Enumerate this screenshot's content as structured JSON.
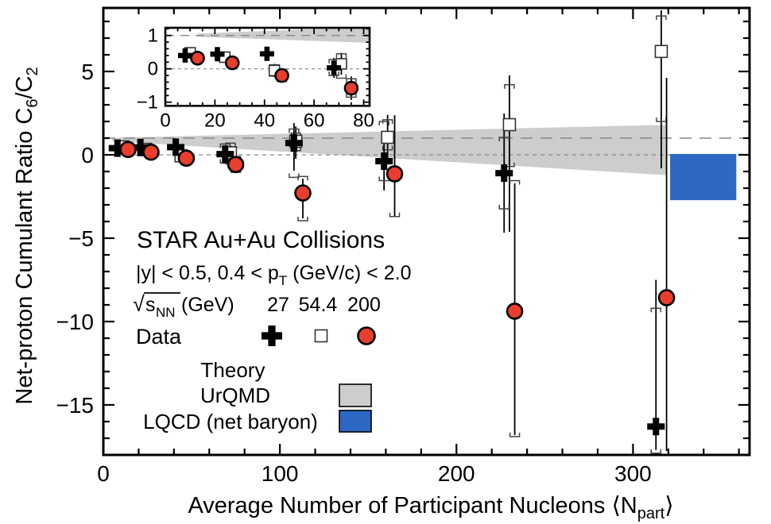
{
  "chart_data": {
    "type": "scatter",
    "title": "STAR Au+Au Collisions",
    "subtitle_parts": [
      "|y| < 0.5, 0.4 < p",
      "T",
      " (GeV/c) < 2.0"
    ],
    "energy_row": {
      "radical": "√",
      "s_symbol": "s",
      "s_subscript": "NN",
      "unit": " (GeV)",
      "energies": [
        "27",
        "54.4",
        "200"
      ]
    },
    "data_label": "Data",
    "theory_label": "Theory",
    "urqmd_label": "UrQMD",
    "lqcd_label": "LQCD (net baryon)",
    "xlabel_parts": [
      "Average Number of Participant Nucleons ⟨N",
      "part",
      "⟩"
    ],
    "ylabel_parts": [
      "Net-proton Cumulant Ratio C",
      "6",
      "/C",
      "2"
    ],
    "xlim": [
      0,
      366
    ],
    "ylim": [
      -18,
      8.81
    ],
    "xticks": {
      "major": [
        0,
        100,
        200,
        300
      ],
      "labels": [
        "0",
        "100",
        "200",
        "300"
      ],
      "minor_step": 20
    },
    "yticks": {
      "major": [
        5,
        0,
        -5,
        -10,
        -15
      ],
      "labels": [
        "5",
        "0",
        "−5",
        "−10",
        "−15"
      ],
      "minor_step": 1
    },
    "dashed_lines": [
      1,
      0
    ],
    "urqmd_band": [
      [
        5,
        1.02
      ],
      [
        319,
        1.8
      ],
      [
        319,
        -1.22
      ],
      [
        5,
        0.82
      ]
    ],
    "lqcd_box": {
      "x0": 321,
      "x1": 358.5,
      "y0": -2.72,
      "y1": 0.05
    },
    "colors": {
      "cross": "#000000",
      "circle_fill": "#e93d2d",
      "square_stroke": "#333333",
      "band": "#cdcdcd",
      "lqcd_blue": "#2e68c5",
      "dash": "#888888",
      "bracket": "#444444"
    },
    "series": [
      {
        "name": "54.4",
        "marker": "square",
        "points": [
          [
            11,
            0.48,
            0.33,
            0.63,
            null,
            null
          ],
          [
            24,
            0.33,
            0.13,
            0.53,
            null,
            null
          ],
          [
            44,
            -0.06,
            -0.31,
            0.19,
            null,
            null
          ],
          [
            72,
            0.12,
            -0.33,
            0.57,
            -0.55,
            0.7
          ],
          [
            109,
            0.81,
            -0.24,
            1.7,
            0.25,
            1.3
          ],
          [
            161,
            1.05,
            -0.5,
            2.4,
            0.3,
            2.1
          ],
          [
            230,
            1.81,
            -4.62,
            4.76,
            -0.7,
            4.2
          ],
          [
            316,
            6.2,
            -0.81,
            8.67,
            2.0,
            8.33
          ]
        ]
      },
      {
        "name": "27",
        "marker": "cross",
        "points": [
          [
            8,
            0.4,
            0.28,
            0.52,
            null,
            null
          ],
          [
            21,
            0.44,
            0.32,
            0.56,
            null,
            null
          ],
          [
            41,
            0.46,
            0.31,
            0.61,
            null,
            null
          ],
          [
            69,
            0.04,
            -0.36,
            0.44,
            -0.5,
            0.65
          ],
          [
            108,
            0.71,
            -0.95,
            1.9,
            -1.35,
            1.55
          ],
          [
            159,
            -0.38,
            -2.14,
            0.71,
            -1.55,
            2.0
          ],
          [
            227,
            -1.1,
            -4.67,
            2.48,
            -3.24,
            1.05
          ],
          [
            313,
            -16.3,
            -17.7,
            -7.5,
            -17.9,
            -9.2
          ]
        ]
      },
      {
        "name": "200",
        "marker": "circle",
        "points": [
          [
            14,
            0.32,
            0.22,
            0.42,
            null,
            null
          ],
          [
            27,
            0.16,
            0.06,
            0.26,
            null,
            null
          ],
          [
            47,
            -0.2,
            -0.45,
            0.05,
            null,
            null
          ],
          [
            75,
            -0.58,
            -0.95,
            -0.21,
            -1.05,
            -0.1
          ],
          [
            113,
            -2.29,
            -3.81,
            -1.43,
            -3.95,
            -1.3
          ],
          [
            165,
            -1.14,
            -3.71,
            2.38,
            -3.7,
            -0.85
          ],
          [
            233,
            -9.38,
            -16.81,
            -1.71,
            -16.9,
            -1.55
          ],
          [
            319,
            -8.57,
            -17.76,
            4.62,
            null,
            null
          ]
        ]
      }
    ],
    "inset": {
      "xlim": [
        0,
        82.4
      ],
      "ylim": [
        -1.11,
        1.231
      ],
      "xticks": {
        "major": [
          0,
          20,
          40,
          60,
          80
        ],
        "labels": [
          "0",
          "20",
          "40",
          "60",
          "80"
        ],
        "minor_step": 5
      },
      "yticks": {
        "major": [
          1,
          0,
          -1
        ],
        "labels": [
          "1",
          "0",
          "−1"
        ],
        "minor_step": 0.2
      },
      "dashed_lines": [
        1,
        0
      ],
      "band": [
        [
          13,
          1.06
        ],
        [
          82.4,
          1.25
        ],
        [
          82.4,
          0.78
        ],
        [
          13,
          0.96
        ]
      ],
      "series": [
        {
          "name": "54.4",
          "marker": "square",
          "points": [
            [
              10,
              0.48,
              0.33,
              0.63,
              null,
              null
            ],
            [
              24,
              0.35,
              0.2,
              0.5,
              null,
              null
            ],
            [
              44,
              -0.05,
              -0.25,
              0.15,
              -0.22,
              0.12
            ],
            [
              71,
              0.15,
              -0.18,
              0.48,
              -0.28,
              0.45
            ]
          ]
        },
        {
          "name": "27",
          "marker": "cross",
          "points": [
            [
              8,
              0.4,
              0.28,
              0.52,
              null,
              null
            ],
            [
              21,
              0.44,
              0.32,
              0.56,
              null,
              null
            ],
            [
              41,
              0.45,
              0.3,
              0.6,
              null,
              null
            ],
            [
              68,
              0.03,
              -0.27,
              0.33,
              -0.2,
              0.28
            ]
          ]
        },
        {
          "name": "200",
          "marker": "circle",
          "points": [
            [
              13,
              0.32,
              0.22,
              0.42,
              null,
              null
            ],
            [
              27,
              0.18,
              0.08,
              0.28,
              null,
              null
            ],
            [
              47,
              -0.2,
              -0.4,
              0.0,
              -0.38,
              -0.02
            ],
            [
              75,
              -0.58,
              -0.93,
              -0.23,
              -0.85,
              -0.3
            ]
          ]
        }
      ]
    }
  }
}
